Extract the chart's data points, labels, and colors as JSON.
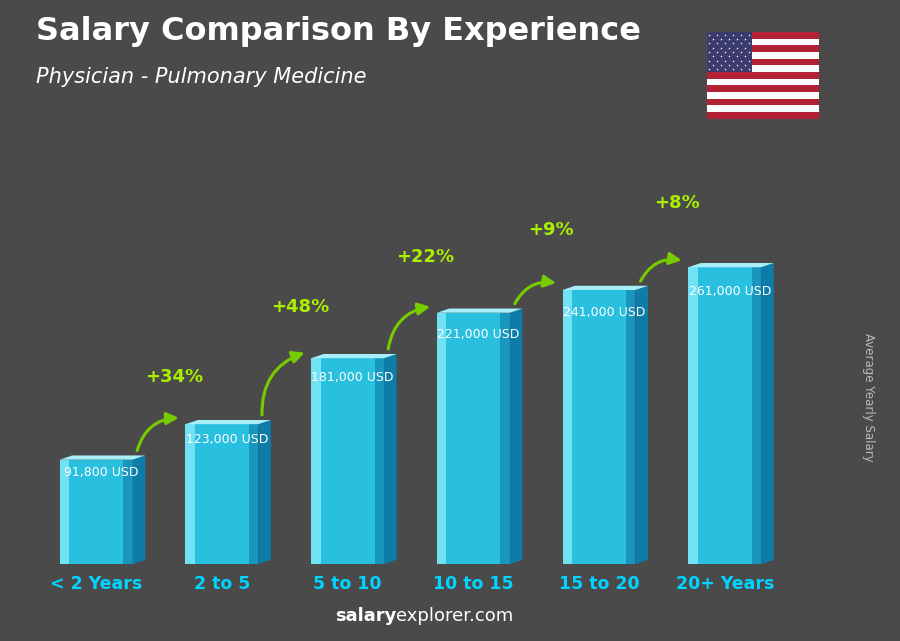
{
  "title": "Salary Comparison By Experience",
  "subtitle": "Physician - Pulmonary Medicine",
  "categories": [
    "< 2 Years",
    "2 to 5",
    "5 to 10",
    "10 to 15",
    "15 to 20",
    "20+ Years"
  ],
  "values": [
    91800,
    123000,
    181000,
    221000,
    241000,
    261000
  ],
  "value_labels": [
    "91,800 USD",
    "123,000 USD",
    "181,000 USD",
    "221,000 USD",
    "241,000 USD",
    "261,000 USD"
  ],
  "pct_labels": [
    "+34%",
    "+48%",
    "+22%",
    "+9%",
    "+8%"
  ],
  "bar_face_color": "#29BFDF",
  "bar_light_color": "#7FE8F8",
  "bar_dark_color": "#0E7CA8",
  "bar_top_color": "#A8EEF8",
  "background_color": "#4A4A4A",
  "title_color": "#FFFFFF",
  "subtitle_color": "#FFFFFF",
  "category_color": "#00D4FF",
  "value_label_color": "#FFFFFF",
  "pct_color": "#AAEE00",
  "arrow_color": "#77CC00",
  "watermark_bold": "salary",
  "watermark_normal": "explorer.com",
  "ylabel": "Average Yearly Salary",
  "ylabel_color": "#BBBBBB",
  "ylim": [
    0,
    310000
  ]
}
